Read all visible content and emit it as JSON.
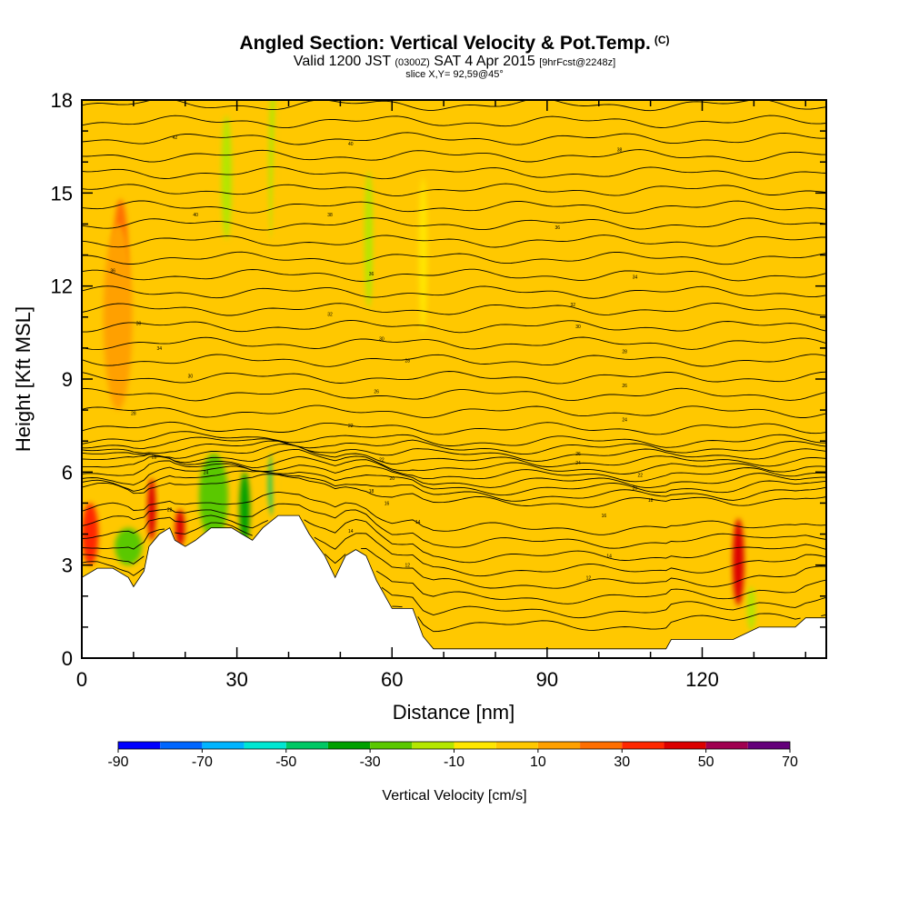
{
  "header": {
    "title": "Angled Section: Vertical Velocity & Pot.Temp.",
    "title_tag": "(C)",
    "valid_prefix": "Valid 1200 JST",
    "valid_utc": "(0300Z)",
    "valid_date": "SAT 4 Apr 2015",
    "forecast": "[9hrFcst@2248z]",
    "slice": "slice X,Y= 92,59@45°"
  },
  "chart_data": {
    "type": "heatmap",
    "xlabel": "Distance [nm]",
    "ylabel": "Height [Kft MSL]",
    "xlim": [
      0,
      144
    ],
    "ylim": [
      0,
      18
    ],
    "xticks": [
      0,
      30,
      60,
      90,
      120
    ],
    "yticks": [
      0,
      3,
      6,
      9,
      12,
      15,
      18
    ],
    "field_label": "Vertical Velocity [cm/s]",
    "colorbar": {
      "ticks": [
        -90,
        -70,
        -50,
        -30,
        -10,
        10,
        30,
        50,
        70
      ],
      "bins": [
        -90,
        -80,
        -70,
        -60,
        -50,
        -40,
        -30,
        -20,
        -10,
        0,
        10,
        20,
        30,
        40,
        50,
        60,
        70
      ],
      "colors": [
        "#0000ff",
        "#0066ff",
        "#00b4ff",
        "#00e6d2",
        "#00c864",
        "#00a000",
        "#5ac800",
        "#b4e600",
        "#ffe600",
        "#ffc800",
        "#ffa000",
        "#ff6e00",
        "#ff2800",
        "#dc0000",
        "#a00050",
        "#64007a"
      ]
    },
    "terrain": [
      [
        0,
        2.6
      ],
      [
        3,
        2.9
      ],
      [
        6,
        2.9
      ],
      [
        9,
        2.6
      ],
      [
        10,
        2.3
      ],
      [
        12,
        2.8
      ],
      [
        13,
        3.6
      ],
      [
        15,
        4.0
      ],
      [
        17,
        4.2
      ],
      [
        18,
        3.8
      ],
      [
        20,
        3.6
      ],
      [
        22,
        3.8
      ],
      [
        25,
        4.2
      ],
      [
        29,
        4.2
      ],
      [
        31,
        4.0
      ],
      [
        33,
        3.8
      ],
      [
        35,
        4.2
      ],
      [
        38,
        4.6
      ],
      [
        42,
        4.6
      ],
      [
        44,
        4.0
      ],
      [
        47,
        3.3
      ],
      [
        49,
        2.6
      ],
      [
        51,
        3.3
      ],
      [
        53,
        3.5
      ],
      [
        55,
        3.3
      ],
      [
        57,
        2.5
      ],
      [
        60,
        1.6
      ],
      [
        64,
        1.6
      ],
      [
        66,
        0.7
      ],
      [
        68,
        0.3
      ],
      [
        75,
        0.3
      ],
      [
        90,
        0.3
      ],
      [
        113,
        0.3
      ],
      [
        114,
        0.6
      ],
      [
        120,
        0.6
      ],
      [
        126,
        0.6
      ],
      [
        131,
        1.0
      ],
      [
        138,
        1.0
      ],
      [
        140,
        1.3
      ],
      [
        144,
        1.3
      ]
    ],
    "velocity_cells": [
      {
        "x": 1.6,
        "y": 4.0,
        "rx": 1.6,
        "ry": 1.0,
        "v": 35
      },
      {
        "x": 7.5,
        "y": 13.0,
        "rx": 1.4,
        "ry": 1.8,
        "v": 25
      },
      {
        "x": 7.0,
        "y": 11.0,
        "rx": 2.8,
        "ry": 3.0,
        "v": 12
      },
      {
        "x": 13.5,
        "y": 4.8,
        "rx": 0.8,
        "ry": 1.0,
        "v": 40
      },
      {
        "x": 19.0,
        "y": 4.2,
        "rx": 0.9,
        "ry": 0.6,
        "v": 45
      },
      {
        "x": 9.0,
        "y": 3.6,
        "rx": 2.6,
        "ry": 0.6,
        "v": -25
      },
      {
        "x": 25.5,
        "y": 5.2,
        "rx": 2.8,
        "ry": 1.4,
        "v": -30
      },
      {
        "x": 31.5,
        "y": 4.8,
        "rx": 1.0,
        "ry": 1.2,
        "v": -35
      },
      {
        "x": 37.0,
        "y": 5.6,
        "rx": 0.9,
        "ry": 1.0,
        "v": -45
      },
      {
        "x": 28.0,
        "y": 15.5,
        "rx": 1.0,
        "ry": 2.0,
        "v": -15
      },
      {
        "x": 37.0,
        "y": 16.0,
        "rx": 0.8,
        "ry": 2.5,
        "v": -12
      },
      {
        "x": 55.5,
        "y": 13.5,
        "rx": 0.8,
        "ry": 2.2,
        "v": -12
      },
      {
        "x": 66.0,
        "y": 13.0,
        "rx": 0.8,
        "ry": 2.5,
        "v": -10
      },
      {
        "x": 127.0,
        "y": 3.1,
        "rx": 1.1,
        "ry": 1.4,
        "v": 45
      },
      {
        "x": 129.5,
        "y": 1.6,
        "rx": 0.8,
        "ry": 0.7,
        "v": -20
      },
      {
        "x": 38.0,
        "y": 10.0,
        "rx": 1.5,
        "ry": 8.0,
        "v": 8
      },
      {
        "x": 48.0,
        "y": 11.0,
        "rx": 2.0,
        "ry": 7.0,
        "v": 8
      },
      {
        "x": 60.0,
        "y": 12.0,
        "rx": 3.0,
        "ry": 6.0,
        "v": 6
      },
      {
        "x": 82.0,
        "y": 10.0,
        "rx": 4.0,
        "ry": 9.0,
        "v": 5
      },
      {
        "x": 100.0,
        "y": 9.0,
        "rx": 5.0,
        "ry": 9.0,
        "v": 5
      },
      {
        "x": 118.0,
        "y": 10.0,
        "rx": 4.0,
        "ry": 9.0,
        "v": 5
      },
      {
        "x": 138.0,
        "y": 12.0,
        "rx": 4.0,
        "ry": 6.0,
        "v": 5
      },
      {
        "x": 86.0,
        "y": 2.0,
        "rx": 20.0,
        "ry": 1.5,
        "v": 5
      }
    ],
    "theta_labels": [
      {
        "x": 18,
        "y": 16.8,
        "t": "42"
      },
      {
        "x": 52,
        "y": 16.6,
        "t": "40"
      },
      {
        "x": 104,
        "y": 16.4,
        "t": "38"
      },
      {
        "x": 22,
        "y": 14.3,
        "t": "40"
      },
      {
        "x": 48,
        "y": 14.3,
        "t": "38"
      },
      {
        "x": 92,
        "y": 13.9,
        "t": "36"
      },
      {
        "x": 6,
        "y": 12.5,
        "t": "36"
      },
      {
        "x": 56,
        "y": 12.4,
        "t": "36"
      },
      {
        "x": 107,
        "y": 12.3,
        "t": "34"
      },
      {
        "x": 95,
        "y": 11.4,
        "t": "32"
      },
      {
        "x": 48,
        "y": 11.1,
        "t": "32"
      },
      {
        "x": 11,
        "y": 10.8,
        "t": "30"
      },
      {
        "x": 96,
        "y": 10.7,
        "t": "30"
      },
      {
        "x": 58,
        "y": 10.3,
        "t": "30"
      },
      {
        "x": 15,
        "y": 10.0,
        "t": "34"
      },
      {
        "x": 105,
        "y": 9.9,
        "t": "28"
      },
      {
        "x": 63,
        "y": 9.6,
        "t": "28"
      },
      {
        "x": 21,
        "y": 9.1,
        "t": "30"
      },
      {
        "x": 105,
        "y": 8.8,
        "t": "26"
      },
      {
        "x": 57,
        "y": 8.6,
        "t": "26"
      },
      {
        "x": 10,
        "y": 7.9,
        "t": "28"
      },
      {
        "x": 105,
        "y": 7.7,
        "t": "24"
      },
      {
        "x": 52,
        "y": 7.5,
        "t": "22"
      },
      {
        "x": 96,
        "y": 6.6,
        "t": "26"
      },
      {
        "x": 14,
        "y": 6.5,
        "t": "28"
      },
      {
        "x": 58,
        "y": 6.4,
        "t": "22"
      },
      {
        "x": 96,
        "y": 6.3,
        "t": "24"
      },
      {
        "x": 24,
        "y": 6.0,
        "t": "24"
      },
      {
        "x": 108,
        "y": 5.9,
        "t": "22"
      },
      {
        "x": 60,
        "y": 5.8,
        "t": "20"
      },
      {
        "x": 107,
        "y": 5.5,
        "t": "20"
      },
      {
        "x": 56,
        "y": 5.4,
        "t": "18"
      },
      {
        "x": 110,
        "y": 5.1,
        "t": "18"
      },
      {
        "x": 59,
        "y": 5.0,
        "t": "16"
      },
      {
        "x": 17,
        "y": 4.8,
        "t": "22"
      },
      {
        "x": 101,
        "y": 4.6,
        "t": "16"
      },
      {
        "x": 65,
        "y": 4.4,
        "t": "14"
      },
      {
        "x": 52,
        "y": 4.1,
        "t": "14"
      },
      {
        "x": 102,
        "y": 3.3,
        "t": "14"
      },
      {
        "x": 63,
        "y": 3.0,
        "t": "12"
      },
      {
        "x": 98,
        "y": 2.6,
        "t": "12"
      }
    ]
  }
}
